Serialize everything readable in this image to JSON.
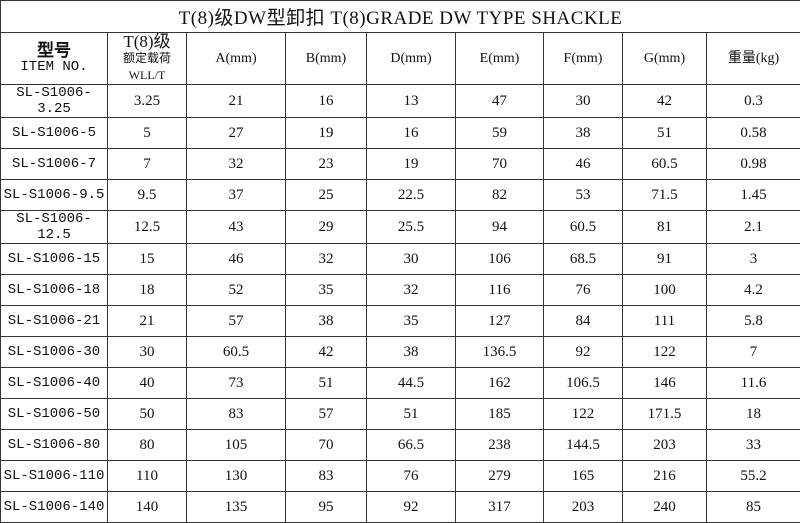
{
  "title": "T(8)级DW型卸扣 T(8)GRADE DW TYPE SHACKLE",
  "headers": {
    "item_cn": "型号",
    "item_en": "ITEM NO.",
    "grade": "T(8)级",
    "wll": "额定载荷WLL/T",
    "cols": [
      "A(mm)",
      "B(mm)",
      "D(mm)",
      "E(mm)",
      "F(mm)",
      "G(mm)",
      "重量(kg)"
    ]
  },
  "rows": [
    [
      "SL-S1006-3.25",
      "3.25",
      "21",
      "16",
      "13",
      "47",
      "30",
      "42",
      "0.3"
    ],
    [
      "SL-S1006-5",
      "5",
      "27",
      "19",
      "16",
      "59",
      "38",
      "51",
      "0.58"
    ],
    [
      "SL-S1006-7",
      "7",
      "32",
      "23",
      "19",
      "70",
      "46",
      "60.5",
      "0.98"
    ],
    [
      "SL-S1006-9.5",
      "9.5",
      "37",
      "25",
      "22.5",
      "82",
      "53",
      "71.5",
      "1.45"
    ],
    [
      "SL-S1006-12.5",
      "12.5",
      "43",
      "29",
      "25.5",
      "94",
      "60.5",
      "81",
      "2.1"
    ],
    [
      "SL-S1006-15",
      "15",
      "46",
      "32",
      "30",
      "106",
      "68.5",
      "91",
      "3"
    ],
    [
      "SL-S1006-18",
      "18",
      "52",
      "35",
      "32",
      "116",
      "76",
      "100",
      "4.2"
    ],
    [
      "SL-S1006-21",
      "21",
      "57",
      "38",
      "35",
      "127",
      "84",
      "111",
      "5.8"
    ],
    [
      "SL-S1006-30",
      "30",
      "60.5",
      "42",
      "38",
      "136.5",
      "92",
      "122",
      "7"
    ],
    [
      "SL-S1006-40",
      "40",
      "73",
      "51",
      "44.5",
      "162",
      "106.5",
      "146",
      "11.6"
    ],
    [
      "SL-S1006-50",
      "50",
      "83",
      "57",
      "51",
      "185",
      "122",
      "171.5",
      "18"
    ],
    [
      "SL-S1006-80",
      "80",
      "105",
      "70",
      "66.5",
      "238",
      "144.5",
      "203",
      "33"
    ],
    [
      "SL-S1006-110",
      "110",
      "130",
      "83",
      "76",
      "279",
      "165",
      "216",
      "55.2"
    ],
    [
      "SL-S1006-140",
      "140",
      "135",
      "95",
      "92",
      "317",
      "203",
      "240",
      "85"
    ]
  ]
}
